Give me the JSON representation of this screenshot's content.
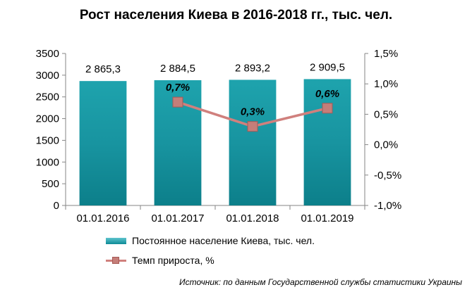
{
  "title": "Рост населения Киева в 2016-2018 гг., тыс. чел.",
  "chart_data": {
    "type": "bar",
    "categories": [
      "01.01.2016",
      "01.01.2017",
      "01.01.2018",
      "01.01.2019"
    ],
    "series": [
      {
        "name": "Постоянное население  Киева, тыс. чел.",
        "axis": "left",
        "values": [
          2865.3,
          2884.5,
          2893.2,
          2909.5
        ],
        "labels": [
          "2 865,3",
          "2 884,5",
          "2 893,2",
          "2 909,5"
        ],
        "color": "#1a9aa4"
      },
      {
        "name": "Темп прироста, %",
        "type": "line",
        "axis": "right",
        "values": [
          null,
          0.7,
          0.3,
          0.6
        ],
        "labels": [
          "",
          "0,7%",
          "0,3%",
          "0,6%"
        ],
        "color": "#c57e79"
      }
    ],
    "y_left": {
      "ylim": [
        0,
        3500
      ],
      "ticks": [
        "0",
        "500",
        "1000",
        "1500",
        "2000",
        "2500",
        "3000",
        "3500"
      ]
    },
    "y_right": {
      "ylim": [
        -1.0,
        1.5
      ],
      "ticks": [
        "-1,0%",
        "-0,5%",
        "0,0%",
        "0,5%",
        "1,0%",
        "1,5%"
      ]
    },
    "grid": false,
    "legend_position": "bottom"
  },
  "source": "Источник: по данным Государственной службы статистики Украины"
}
